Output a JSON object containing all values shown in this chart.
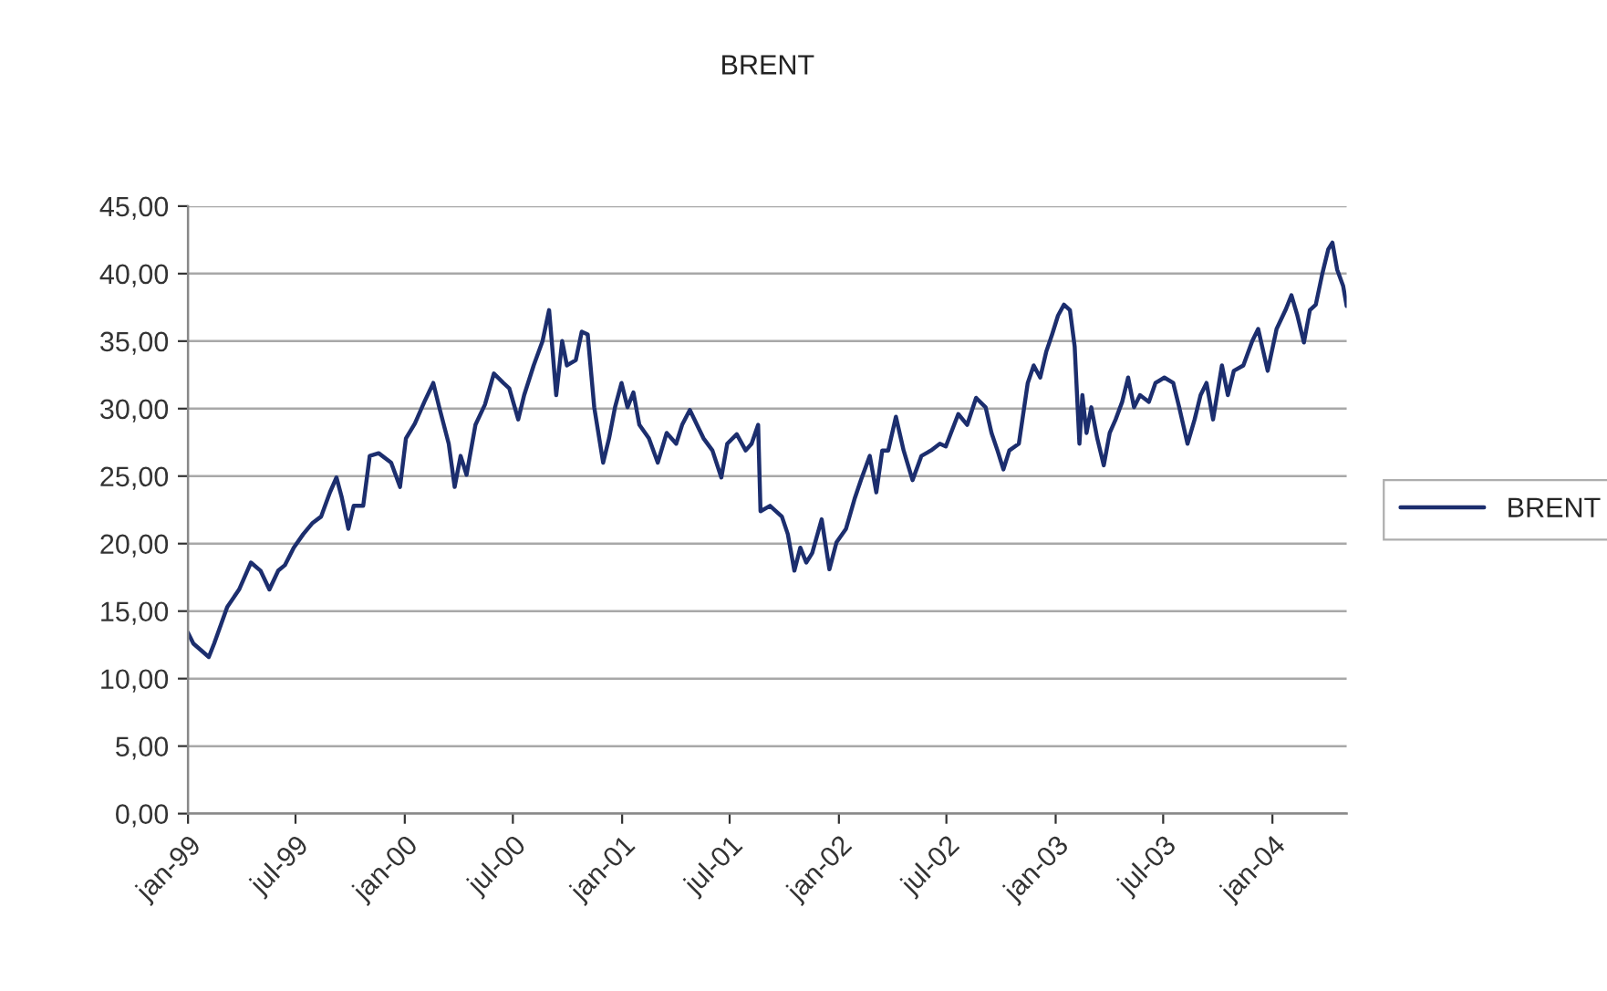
{
  "chart_data": {
    "type": "line",
    "title": "BRENT",
    "x": [
      "1999-01-01",
      "1999-01-10",
      "1999-02-05",
      "1999-02-14",
      "1999-03-08",
      "1999-03-28",
      "1999-04-17",
      "1999-05-03",
      "1999-05-18",
      "1999-06-02",
      "1999-06-13",
      "1999-06-28",
      "1999-07-14",
      "1999-07-29",
      "1999-08-13",
      "1999-08-28",
      "1999-09-08",
      "1999-09-17",
      "1999-09-28",
      "1999-10-07",
      "1999-10-23",
      "1999-11-03",
      "1999-11-18",
      "1999-12-09",
      "1999-12-24",
      "2000-01-03",
      "2000-01-18",
      "2000-02-03",
      "2000-02-18",
      "2000-02-28",
      "2000-03-15",
      "2000-03-25",
      "2000-04-04",
      "2000-04-14",
      "2000-04-29",
      "2000-05-15",
      "2000-05-30",
      "2000-06-15",
      "2000-06-25",
      "2000-07-10",
      "2000-07-20",
      "2000-08-05",
      "2000-08-20",
      "2000-08-31",
      "2000-09-06",
      "2000-09-12",
      "2000-09-22",
      "2000-09-30",
      "2000-10-15",
      "2000-10-25",
      "2000-11-04",
      "2000-11-15",
      "2000-11-30",
      "2000-12-10",
      "2000-12-20",
      "2000-12-31",
      "2001-01-10",
      "2001-01-20",
      "2001-01-30",
      "2001-02-15",
      "2001-03-02",
      "2001-03-17",
      "2001-04-02",
      "2001-04-12",
      "2001-04-25",
      "2001-05-07",
      "2001-05-18",
      "2001-06-02",
      "2001-06-17",
      "2001-06-27",
      "2001-07-13",
      "2001-07-28",
      "2001-08-07",
      "2001-08-18",
      "2001-08-22",
      "2001-09-07",
      "2001-09-27",
      "2001-10-07",
      "2001-10-18",
      "2001-10-28",
      "2001-11-07",
      "2001-11-17",
      "2001-12-03",
      "2001-12-16",
      "2001-12-28",
      "2002-01-13",
      "2002-01-28",
      "2002-02-07",
      "2002-02-22",
      "2002-03-05",
      "2002-03-15",
      "2002-03-25",
      "2002-04-07",
      "2002-04-20",
      "2002-05-05",
      "2002-05-20",
      "2002-06-05",
      "2002-06-20",
      "2002-06-30",
      "2002-07-21",
      "2002-08-05",
      "2002-08-20",
      "2002-09-05",
      "2002-09-15",
      "2002-09-25",
      "2002-10-05",
      "2002-10-15",
      "2002-10-31",
      "2002-11-15",
      "2002-11-25",
      "2002-12-06",
      "2002-12-16",
      "2002-12-26",
      "2003-01-05",
      "2003-01-15",
      "2003-01-25",
      "2003-02-02",
      "2003-02-10",
      "2003-02-15",
      "2003-02-22",
      "2003-03-02",
      "2003-03-12",
      "2003-03-23",
      "2003-04-02",
      "2003-04-12",
      "2003-04-23",
      "2003-05-03",
      "2003-05-13",
      "2003-05-23",
      "2003-06-07",
      "2003-06-18",
      "2003-07-03",
      "2003-07-18",
      "2003-07-28",
      "2003-08-11",
      "2003-08-23",
      "2003-09-02",
      "2003-09-12",
      "2003-09-23",
      "2003-10-08",
      "2003-10-18",
      "2003-10-28",
      "2003-11-13",
      "2003-11-28",
      "2003-12-08",
      "2003-12-24",
      "2004-01-08",
      "2004-01-23",
      "2004-02-02",
      "2004-02-12",
      "2004-02-23",
      "2004-03-04",
      "2004-03-14",
      "2004-03-25",
      "2004-04-04",
      "2004-04-11",
      "2004-04-19",
      "2004-04-29",
      "2004-05-05"
    ],
    "series": [
      {
        "name": "BRENT",
        "color": "#1c2e6e",
        "values": [
          13.4,
          12.6,
          11.6,
          12.6,
          15.3,
          16.6,
          18.6,
          18.0,
          16.6,
          18.0,
          18.4,
          19.7,
          20.7,
          21.5,
          22.0,
          23.8,
          24.9,
          23.4,
          21.1,
          22.8,
          22.8,
          26.5,
          26.7,
          26.0,
          24.2,
          27.8,
          28.9,
          30.5,
          31.9,
          30.1,
          27.4,
          24.2,
          26.5,
          25.1,
          28.8,
          30.3,
          32.6,
          31.9,
          31.5,
          29.2,
          31.0,
          33.2,
          35.0,
          37.3,
          34.2,
          31.0,
          35.0,
          33.2,
          33.6,
          35.7,
          35.5,
          30.1,
          26.0,
          27.8,
          30.1,
          31.9,
          30.1,
          31.2,
          28.8,
          27.8,
          26.0,
          28.2,
          27.4,
          28.8,
          29.9,
          28.8,
          27.8,
          26.9,
          24.9,
          27.4,
          28.1,
          26.9,
          27.4,
          28.8,
          22.4,
          22.8,
          22.0,
          20.7,
          18.0,
          19.7,
          18.6,
          19.3,
          21.8,
          18.1,
          20.1,
          21.1,
          23.4,
          24.7,
          26.5,
          23.8,
          26.9,
          26.9,
          29.4,
          26.9,
          24.7,
          26.5,
          26.9,
          27.4,
          27.2,
          29.6,
          28.8,
          30.8,
          30.1,
          28.2,
          26.9,
          25.5,
          26.9,
          27.4,
          31.9,
          33.2,
          32.3,
          34.2,
          35.5,
          36.9,
          37.7,
          37.3,
          34.6,
          27.4,
          31.0,
          28.2,
          30.1,
          27.8,
          25.8,
          28.2,
          29.2,
          30.5,
          32.3,
          30.1,
          31.0,
          30.5,
          31.9,
          32.3,
          31.9,
          30.1,
          27.4,
          29.2,
          31.0,
          31.9,
          29.2,
          33.2,
          31.0,
          32.8,
          33.2,
          35.0,
          35.9,
          32.8,
          35.9,
          37.3,
          38.4,
          36.9,
          34.9,
          37.3,
          37.7,
          40.0,
          41.8,
          42.3,
          40.3,
          39.1,
          37.6
        ]
      }
    ],
    "xlim": [
      "1999-01-01",
      "2004-05-05"
    ],
    "xticks": [
      {
        "value": "1999-01-01",
        "label": "jan-99"
      },
      {
        "value": "1999-07-01",
        "label": "jul-99"
      },
      {
        "value": "2000-01-01",
        "label": "jan-00"
      },
      {
        "value": "2000-07-01",
        "label": "jul-00"
      },
      {
        "value": "2001-01-01",
        "label": "jan-01"
      },
      {
        "value": "2001-07-01",
        "label": "jul-01"
      },
      {
        "value": "2002-01-01",
        "label": "jan-02"
      },
      {
        "value": "2002-07-01",
        "label": "jul-02"
      },
      {
        "value": "2003-01-01",
        "label": "jan-03"
      },
      {
        "value": "2003-07-01",
        "label": "jul-03"
      },
      {
        "value": "2004-01-01",
        "label": "jan-04"
      }
    ],
    "ylim": [
      0,
      45
    ],
    "yticks": [
      {
        "value": 0,
        "label": "0,00"
      },
      {
        "value": 5,
        "label": "5,00"
      },
      {
        "value": 10,
        "label": "10,00"
      },
      {
        "value": 15,
        "label": "15,00"
      },
      {
        "value": 20,
        "label": "20,00"
      },
      {
        "value": 25,
        "label": "25,00"
      },
      {
        "value": 30,
        "label": "30,00"
      },
      {
        "value": 35,
        "label": "35,00"
      },
      {
        "value": 40,
        "label": "40,00"
      },
      {
        "value": 45,
        "label": "45,00"
      }
    ],
    "grid": "y",
    "legend": "right",
    "marker": "none",
    "line_style": "solid"
  }
}
